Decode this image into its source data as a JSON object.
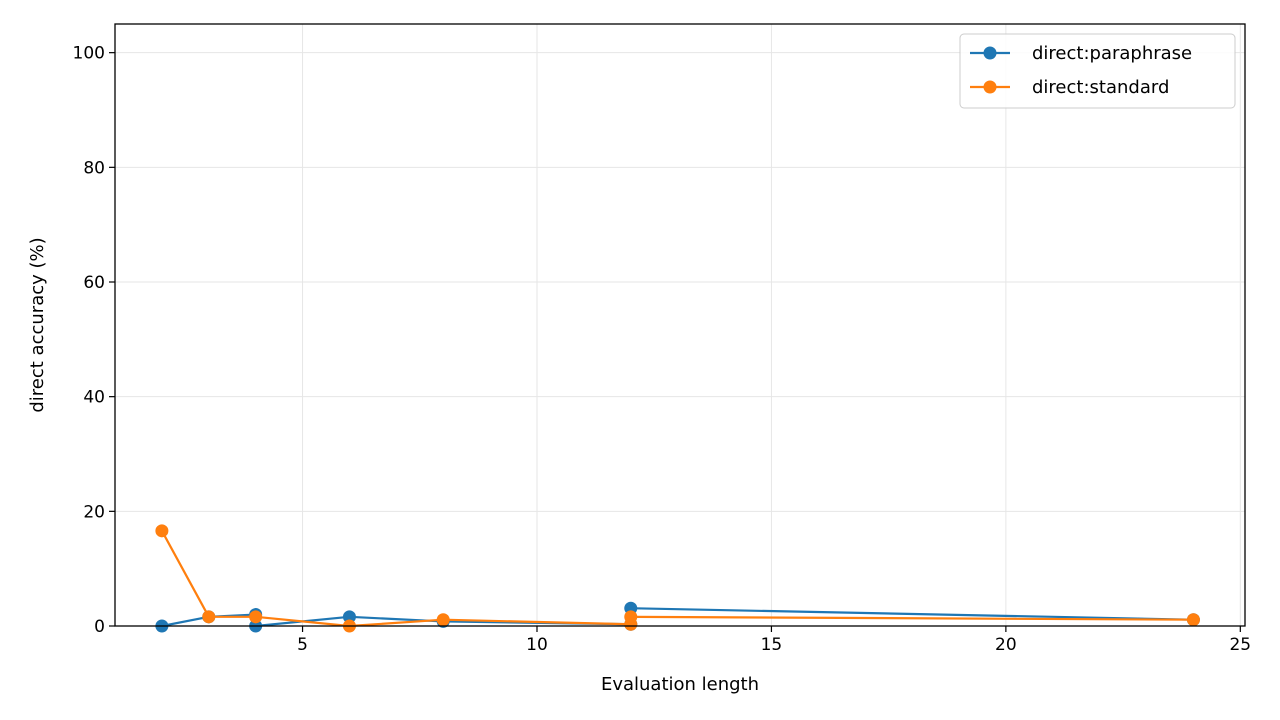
{
  "chart_data": {
    "type": "line",
    "title": "",
    "xlabel": "Evaluation length",
    "ylabel": "direct accuracy (%)",
    "xlim": [
      1,
      25.1
    ],
    "ylim": [
      0,
      105
    ],
    "xticks": [
      5,
      10,
      15,
      20,
      25
    ],
    "yticks": [
      0,
      20,
      40,
      60,
      80,
      100
    ],
    "grid": true,
    "legend_position": "top-right",
    "series": [
      {
        "name": "direct:paraphrase",
        "color": "#1f77b4",
        "points": [
          {
            "x": 2,
            "y": 0.0
          },
          {
            "x": 3,
            "y": 1.6
          },
          {
            "x": 4,
            "y": 2.0
          },
          {
            "x": 4,
            "y": 0.0
          },
          {
            "x": 6,
            "y": 1.6
          },
          {
            "x": 8,
            "y": 0.8
          },
          {
            "x": 12,
            "y": 0.3
          },
          {
            "x": 12,
            "y": 3.1
          },
          {
            "x": 24,
            "y": 1.1
          }
        ]
      },
      {
        "name": "direct:standard",
        "color": "#ff7f0e",
        "points": [
          {
            "x": 2,
            "y": 16.6
          },
          {
            "x": 3,
            "y": 1.6
          },
          {
            "x": 4,
            "y": 1.6
          },
          {
            "x": 6,
            "y": 0.0
          },
          {
            "x": 8,
            "y": 1.1
          },
          {
            "x": 12,
            "y": 0.3
          },
          {
            "x": 12,
            "y": 1.6
          },
          {
            "x": 24,
            "y": 1.1
          }
        ]
      }
    ]
  }
}
